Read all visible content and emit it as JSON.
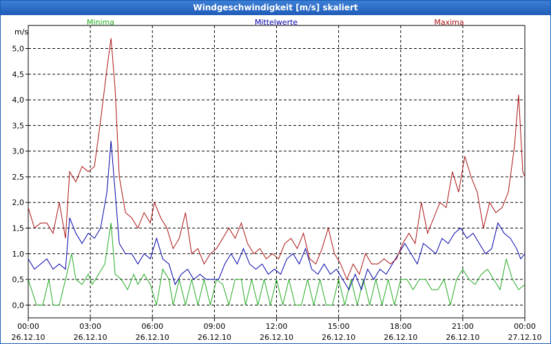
{
  "window": {
    "title": "Windgeschwindigkeit [m/s] skaliert"
  },
  "chart_data": {
    "type": "line",
    "title": "Windgeschwindigkeit [m/s] skaliert",
    "ylabel": "m/s",
    "xlabel": "",
    "ylim": [
      -0.25,
      5.45
    ],
    "yticks": [
      0.0,
      0.5,
      1.0,
      1.5,
      2.0,
      2.5,
      3.0,
      3.5,
      4.0,
      4.5,
      5.0
    ],
    "ytick_labels": [
      "0,0",
      "0,5",
      "1,0",
      "1,5",
      "2,0",
      "2,5",
      "3,0",
      "3,5",
      "4,0",
      "4,5",
      "5,0"
    ],
    "xlim": [
      0,
      24
    ],
    "xticks": [
      {
        "hours": 0,
        "time": "00:00",
        "date": "26.12.10"
      },
      {
        "hours": 3,
        "time": "03:00",
        "date": "26.12.10"
      },
      {
        "hours": 6,
        "time": "06:00",
        "date": "26.12.10"
      },
      {
        "hours": 9,
        "time": "09:00",
        "date": "26.12.10"
      },
      {
        "hours": 12,
        "time": "12:00",
        "date": "26.12.10"
      },
      {
        "hours": 15,
        "time": "15:00",
        "date": "26.12.10"
      },
      {
        "hours": 18,
        "time": "18:00",
        "date": "26.12.10"
      },
      {
        "hours": 21,
        "time": "21:00",
        "date": "26.12.10"
      },
      {
        "hours": 24,
        "time": "00:00",
        "date": "27.12.10"
      }
    ],
    "grid": true,
    "legend_position": "top",
    "series": [
      {
        "name": "Minima",
        "color": "#22aa22",
        "points": [
          [
            0.0,
            0.5
          ],
          [
            0.4,
            0.0
          ],
          [
            0.7,
            0.0
          ],
          [
            1.0,
            0.5
          ],
          [
            1.2,
            0.0
          ],
          [
            1.5,
            0.0
          ],
          [
            1.8,
            0.5
          ],
          [
            2.1,
            1.0
          ],
          [
            2.3,
            0.5
          ],
          [
            2.6,
            0.4
          ],
          [
            2.9,
            0.6
          ],
          [
            3.1,
            0.4
          ],
          [
            3.4,
            0.6
          ],
          [
            3.7,
            0.8
          ],
          [
            4.0,
            1.6
          ],
          [
            4.2,
            0.6
          ],
          [
            4.5,
            0.5
          ],
          [
            4.8,
            0.3
          ],
          [
            5.1,
            0.6
          ],
          [
            5.3,
            0.4
          ],
          [
            5.6,
            0.6
          ],
          [
            5.9,
            0.4
          ],
          [
            6.2,
            0.0
          ],
          [
            6.5,
            0.7
          ],
          [
            6.8,
            0.5
          ],
          [
            7.0,
            0.0
          ],
          [
            7.3,
            0.5
          ],
          [
            7.6,
            0.0
          ],
          [
            7.9,
            0.5
          ],
          [
            8.2,
            0.0
          ],
          [
            8.5,
            0.5
          ],
          [
            8.8,
            0.0
          ],
          [
            9.1,
            0.5
          ],
          [
            9.4,
            0.4
          ],
          [
            9.7,
            0.0
          ],
          [
            10.0,
            0.5
          ],
          [
            10.3,
            0.5
          ],
          [
            10.5,
            0.0
          ],
          [
            10.8,
            0.5
          ],
          [
            11.1,
            0.0
          ],
          [
            11.4,
            0.5
          ],
          [
            11.7,
            0.0
          ],
          [
            12.0,
            0.5
          ],
          [
            12.3,
            0.0
          ],
          [
            12.6,
            0.5
          ],
          [
            12.9,
            0.0
          ],
          [
            13.2,
            0.0
          ],
          [
            13.5,
            0.5
          ],
          [
            13.8,
            0.0
          ],
          [
            14.1,
            0.5
          ],
          [
            14.4,
            0.0
          ],
          [
            14.7,
            0.0
          ],
          [
            15.0,
            0.5
          ],
          [
            15.3,
            0.0
          ],
          [
            15.6,
            0.5
          ],
          [
            15.9,
            0.0
          ],
          [
            16.2,
            0.5
          ],
          [
            16.5,
            0.0
          ],
          [
            16.8,
            0.5
          ],
          [
            17.1,
            0.0
          ],
          [
            17.4,
            0.5
          ],
          [
            17.7,
            0.0
          ],
          [
            18.0,
            0.5
          ],
          [
            18.3,
            0.5
          ],
          [
            18.6,
            0.3
          ],
          [
            18.9,
            0.5
          ],
          [
            19.2,
            0.5
          ],
          [
            19.5,
            0.3
          ],
          [
            19.8,
            0.3
          ],
          [
            20.1,
            0.5
          ],
          [
            20.4,
            0.0
          ],
          [
            20.7,
            0.5
          ],
          [
            21.0,
            0.7
          ],
          [
            21.3,
            0.5
          ],
          [
            21.6,
            0.4
          ],
          [
            21.9,
            0.6
          ],
          [
            22.2,
            0.7
          ],
          [
            22.5,
            0.5
          ],
          [
            22.8,
            0.3
          ],
          [
            23.1,
            0.9
          ],
          [
            23.4,
            0.5
          ],
          [
            23.7,
            0.3
          ],
          [
            24.0,
            0.4
          ]
        ]
      },
      {
        "name": "Mittelwerte",
        "color": "#0000aa",
        "points": [
          [
            0.0,
            0.9
          ],
          [
            0.3,
            0.7
          ],
          [
            0.6,
            0.8
          ],
          [
            0.9,
            0.9
          ],
          [
            1.2,
            0.7
          ],
          [
            1.5,
            0.8
          ],
          [
            1.8,
            0.7
          ],
          [
            2.0,
            1.7
          ],
          [
            2.3,
            1.4
          ],
          [
            2.6,
            1.2
          ],
          [
            2.9,
            1.4
          ],
          [
            3.2,
            1.3
          ],
          [
            3.5,
            1.5
          ],
          [
            3.8,
            2.2
          ],
          [
            4.0,
            3.2
          ],
          [
            4.2,
            2.2
          ],
          [
            4.4,
            1.2
          ],
          [
            4.7,
            1.0
          ],
          [
            5.0,
            1.0
          ],
          [
            5.3,
            0.8
          ],
          [
            5.6,
            1.0
          ],
          [
            5.9,
            0.9
          ],
          [
            6.2,
            1.3
          ],
          [
            6.5,
            0.9
          ],
          [
            6.8,
            0.8
          ],
          [
            7.1,
            0.4
          ],
          [
            7.4,
            0.6
          ],
          [
            7.7,
            0.7
          ],
          [
            8.0,
            0.5
          ],
          [
            8.3,
            0.6
          ],
          [
            8.6,
            0.5
          ],
          [
            8.9,
            0.5
          ],
          [
            9.2,
            0.5
          ],
          [
            9.5,
            0.8
          ],
          [
            9.8,
            1.0
          ],
          [
            10.1,
            0.8
          ],
          [
            10.4,
            1.1
          ],
          [
            10.7,
            0.8
          ],
          [
            11.0,
            0.7
          ],
          [
            11.3,
            0.8
          ],
          [
            11.6,
            0.6
          ],
          [
            11.9,
            0.7
          ],
          [
            12.2,
            0.6
          ],
          [
            12.5,
            0.9
          ],
          [
            12.8,
            1.0
          ],
          [
            13.1,
            0.8
          ],
          [
            13.4,
            1.1
          ],
          [
            13.7,
            0.7
          ],
          [
            14.0,
            0.6
          ],
          [
            14.3,
            0.8
          ],
          [
            14.6,
            0.6
          ],
          [
            14.9,
            0.7
          ],
          [
            15.2,
            0.5
          ],
          [
            15.5,
            0.3
          ],
          [
            15.8,
            0.6
          ],
          [
            16.1,
            0.3
          ],
          [
            16.4,
            0.7
          ],
          [
            16.7,
            0.5
          ],
          [
            17.0,
            0.7
          ],
          [
            17.3,
            0.6
          ],
          [
            17.6,
            0.8
          ],
          [
            17.9,
            1.0
          ],
          [
            18.2,
            1.2
          ],
          [
            18.5,
            1.0
          ],
          [
            18.8,
            0.8
          ],
          [
            19.1,
            1.2
          ],
          [
            19.4,
            1.1
          ],
          [
            19.7,
            1.0
          ],
          [
            20.0,
            1.3
          ],
          [
            20.3,
            1.2
          ],
          [
            20.6,
            1.4
          ],
          [
            20.9,
            1.5
          ],
          [
            21.2,
            1.3
          ],
          [
            21.5,
            1.4
          ],
          [
            21.8,
            1.2
          ],
          [
            22.1,
            1.0
          ],
          [
            22.4,
            1.1
          ],
          [
            22.7,
            1.6
          ],
          [
            23.0,
            1.4
          ],
          [
            23.3,
            1.3
          ],
          [
            23.6,
            1.1
          ],
          [
            23.8,
            0.9
          ],
          [
            24.0,
            1.0
          ]
        ]
      },
      {
        "name": "Maxima",
        "color": "#aa1111",
        "points": [
          [
            0.0,
            1.9
          ],
          [
            0.3,
            1.5
          ],
          [
            0.6,
            1.6
          ],
          [
            0.9,
            1.6
          ],
          [
            1.2,
            1.4
          ],
          [
            1.5,
            2.0
          ],
          [
            1.8,
            1.3
          ],
          [
            2.0,
            2.6
          ],
          [
            2.3,
            2.4
          ],
          [
            2.6,
            2.7
          ],
          [
            2.9,
            2.6
          ],
          [
            3.2,
            2.7
          ],
          [
            3.5,
            3.6
          ],
          [
            3.8,
            4.6
          ],
          [
            4.0,
            5.2
          ],
          [
            4.2,
            4.2
          ],
          [
            4.4,
            2.5
          ],
          [
            4.7,
            1.8
          ],
          [
            5.0,
            1.7
          ],
          [
            5.3,
            1.5
          ],
          [
            5.6,
            1.8
          ],
          [
            5.9,
            1.6
          ],
          [
            6.1,
            2.0
          ],
          [
            6.4,
            1.7
          ],
          [
            6.7,
            1.5
          ],
          [
            7.0,
            1.1
          ],
          [
            7.3,
            1.3
          ],
          [
            7.6,
            1.8
          ],
          [
            7.9,
            1.0
          ],
          [
            8.2,
            1.1
          ],
          [
            8.5,
            0.8
          ],
          [
            8.8,
            1.0
          ],
          [
            9.1,
            1.1
          ],
          [
            9.4,
            1.3
          ],
          [
            9.7,
            1.5
          ],
          [
            10.0,
            1.3
          ],
          [
            10.3,
            1.6
          ],
          [
            10.6,
            1.2
          ],
          [
            10.9,
            1.0
          ],
          [
            11.2,
            1.1
          ],
          [
            11.5,
            0.9
          ],
          [
            11.8,
            1.0
          ],
          [
            12.1,
            0.9
          ],
          [
            12.4,
            1.2
          ],
          [
            12.7,
            1.3
          ],
          [
            13.0,
            1.1
          ],
          [
            13.3,
            1.4
          ],
          [
            13.6,
            0.9
          ],
          [
            13.9,
            0.8
          ],
          [
            14.2,
            1.1
          ],
          [
            14.5,
            1.5
          ],
          [
            14.8,
            1.0
          ],
          [
            15.1,
            0.8
          ],
          [
            15.4,
            0.5
          ],
          [
            15.7,
            0.8
          ],
          [
            16.0,
            0.6
          ],
          [
            16.3,
            1.0
          ],
          [
            16.6,
            0.8
          ],
          [
            16.9,
            0.8
          ],
          [
            17.2,
            0.9
          ],
          [
            17.5,
            0.8
          ],
          [
            17.8,
            0.9
          ],
          [
            18.1,
            1.2
          ],
          [
            18.4,
            1.4
          ],
          [
            18.7,
            1.2
          ],
          [
            19.0,
            2.0
          ],
          [
            19.3,
            1.4
          ],
          [
            19.6,
            1.7
          ],
          [
            19.9,
            2.0
          ],
          [
            20.2,
            1.9
          ],
          [
            20.5,
            2.6
          ],
          [
            20.8,
            2.2
          ],
          [
            21.1,
            2.9
          ],
          [
            21.4,
            2.5
          ],
          [
            21.7,
            2.2
          ],
          [
            22.0,
            1.5
          ],
          [
            22.3,
            2.0
          ],
          [
            22.6,
            1.8
          ],
          [
            22.9,
            1.9
          ],
          [
            23.2,
            2.2
          ],
          [
            23.5,
            3.1
          ],
          [
            23.7,
            4.1
          ],
          [
            23.9,
            2.6
          ],
          [
            24.0,
            2.5
          ]
        ]
      }
    ]
  }
}
